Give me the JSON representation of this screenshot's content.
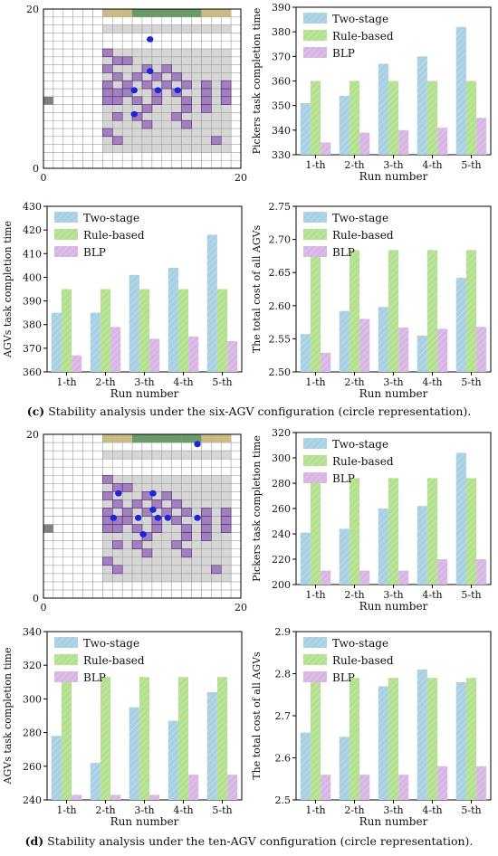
{
  "legend_labels": [
    "Two-stage",
    "Rule-based",
    "BLP"
  ],
  "colors": {
    "two_stage": "#a9cfe2",
    "rule_based": "#b3e08e",
    "blp": "#d7b6e3",
    "grid_line": "#9a9a9a",
    "shelf": "#d6d6d6",
    "workstation": "#a27fc0",
    "agv": "#1e22d8",
    "dock_tan": "#cabb86",
    "dock_green": "#6a9a6a",
    "entry": "#808080"
  },
  "captions": {
    "c": {
      "label": "(c)",
      "text": "Stability analysis under the six-AGV configuration (circle representation)."
    },
    "d": {
      "label": "(d)",
      "text": "Stability analysis under the ten-AGV configuration (circle representation)."
    }
  },
  "chart_data": [
    {
      "type": "grid-map",
      "x_ticks": [
        "0",
        "20"
      ],
      "y_ticks": [
        "0",
        "20"
      ],
      "xlim": [
        0,
        20
      ],
      "ylim": [
        0,
        20
      ],
      "highlighted_cells": [
        [
          6,
          14
        ],
        [
          7,
          13
        ],
        [
          6,
          12
        ],
        [
          7,
          11
        ],
        [
          6,
          10
        ],
        [
          6,
          9
        ],
        [
          7,
          9
        ],
        [
          8,
          10
        ],
        [
          8,
          9
        ],
        [
          6,
          8
        ],
        [
          7,
          8
        ],
        [
          9,
          8
        ],
        [
          6,
          4
        ],
        [
          7,
          6
        ],
        [
          8,
          13
        ],
        [
          9,
          11
        ],
        [
          10,
          12
        ],
        [
          10,
          10
        ],
        [
          11,
          11
        ],
        [
          12,
          12
        ],
        [
          11,
          9
        ],
        [
          12,
          10
        ],
        [
          11,
          8
        ],
        [
          13,
          11
        ],
        [
          14,
          10
        ],
        [
          13,
          9
        ],
        [
          14,
          8
        ],
        [
          16,
          10
        ],
        [
          16,
          9
        ],
        [
          16,
          8
        ],
        [
          18,
          9
        ],
        [
          18,
          8
        ],
        [
          18,
          10
        ],
        [
          9,
          6
        ],
        [
          10,
          7
        ],
        [
          10,
          5
        ],
        [
          13,
          6
        ],
        [
          14,
          7
        ],
        [
          14,
          5
        ],
        [
          16,
          7
        ],
        [
          17,
          3
        ],
        [
          7,
          3
        ]
      ],
      "agvs": [
        [
          10.8,
          16.2
        ],
        [
          10.8,
          12.2
        ],
        [
          9.2,
          9.8
        ],
        [
          11.6,
          9.8
        ],
        [
          13.6,
          9.8
        ],
        [
          9.2,
          6.8
        ]
      ]
    },
    {
      "type": "bar",
      "categories": [
        "1-th",
        "2-th",
        "3-th",
        "4-th",
        "5-th"
      ],
      "series": [
        {
          "name": "Two-stage",
          "values": [
            351,
            354,
            367,
            370,
            382
          ]
        },
        {
          "name": "Rule-based",
          "values": [
            360,
            360,
            360,
            360,
            360
          ]
        },
        {
          "name": "BLP",
          "values": [
            335,
            339,
            340,
            341,
            345
          ]
        }
      ],
      "ylim": [
        330,
        390
      ],
      "yticks": [
        330,
        340,
        350,
        360,
        370,
        380,
        390
      ],
      "xlabel": "Run number",
      "ylabel": "Pickers task completion time",
      "legend": "top-left"
    },
    {
      "type": "bar",
      "categories": [
        "1-th",
        "2-th",
        "3-th",
        "4-th",
        "5-th"
      ],
      "series": [
        {
          "name": "Two-stage",
          "values": [
            385,
            385,
            401,
            404,
            418
          ]
        },
        {
          "name": "Rule-based",
          "values": [
            395,
            395,
            395,
            395,
            395
          ]
        },
        {
          "name": "BLP",
          "values": [
            367,
            379,
            374,
            375,
            373
          ]
        }
      ],
      "ylim": [
        360,
        430
      ],
      "yticks": [
        360,
        370,
        380,
        390,
        400,
        410,
        420,
        430
      ],
      "xlabel": "Run number",
      "ylabel": "AGVs task completion time",
      "legend": "top-left"
    },
    {
      "type": "bar",
      "categories": [
        "1-th",
        "2-th",
        "3-th",
        "4-th",
        "5-th"
      ],
      "series": [
        {
          "name": "Two-stage",
          "values": [
            2.557,
            2.592,
            2.598,
            2.555,
            2.642
          ]
        },
        {
          "name": "Rule-based",
          "values": [
            2.684,
            2.684,
            2.684,
            2.684,
            2.684
          ]
        },
        {
          "name": "BLP",
          "values": [
            2.529,
            2.58,
            2.567,
            2.565,
            2.568
          ]
        }
      ],
      "ylim": [
        2.5,
        2.75
      ],
      "yticks": [
        2.5,
        2.55,
        2.6,
        2.65,
        2.7,
        2.75
      ],
      "xlabel": "Run number",
      "ylabel": "The total cost of all AGVs",
      "legend": "top-left"
    },
    {
      "type": "grid-map",
      "x_ticks": [
        "0",
        "20"
      ],
      "y_ticks": [
        "0",
        "20"
      ],
      "xlim": [
        0,
        20
      ],
      "ylim": [
        0,
        20
      ],
      "highlighted_cells": [
        [
          6,
          14
        ],
        [
          7,
          13
        ],
        [
          6,
          12
        ],
        [
          7,
          11
        ],
        [
          6,
          10
        ],
        [
          6,
          9
        ],
        [
          7,
          9
        ],
        [
          8,
          10
        ],
        [
          8,
          9
        ],
        [
          6,
          8
        ],
        [
          7,
          8
        ],
        [
          9,
          8
        ],
        [
          6,
          4
        ],
        [
          7,
          6
        ],
        [
          8,
          13
        ],
        [
          9,
          11
        ],
        [
          10,
          12
        ],
        [
          10,
          10
        ],
        [
          11,
          11
        ],
        [
          12,
          12
        ],
        [
          11,
          9
        ],
        [
          12,
          10
        ],
        [
          11,
          8
        ],
        [
          13,
          11
        ],
        [
          14,
          10
        ],
        [
          13,
          9
        ],
        [
          14,
          8
        ],
        [
          16,
          10
        ],
        [
          16,
          9
        ],
        [
          16,
          8
        ],
        [
          18,
          9
        ],
        [
          18,
          8
        ],
        [
          18,
          10
        ],
        [
          9,
          6
        ],
        [
          10,
          7
        ],
        [
          10,
          5
        ],
        [
          13,
          6
        ],
        [
          14,
          7
        ],
        [
          14,
          5
        ],
        [
          16,
          7
        ],
        [
          17,
          3
        ],
        [
          7,
          3
        ]
      ],
      "agvs": [
        [
          15.6,
          18.8
        ],
        [
          7.6,
          12.8
        ],
        [
          11.1,
          12.8
        ],
        [
          11.1,
          10.8
        ],
        [
          7.1,
          9.8
        ],
        [
          9.6,
          9.8
        ],
        [
          11.6,
          9.8
        ],
        [
          12.6,
          9.8
        ],
        [
          15.6,
          9.8
        ],
        [
          10.1,
          7.8
        ]
      ]
    },
    {
      "type": "bar",
      "categories": [
        "1-th",
        "2-th",
        "3-th",
        "4-th",
        "5-th"
      ],
      "series": [
        {
          "name": "Two-stage",
          "values": [
            241,
            244,
            260,
            262,
            304
          ]
        },
        {
          "name": "Rule-based",
          "values": [
            284,
            284,
            284,
            284,
            284
          ]
        },
        {
          "name": "BLP",
          "values": [
            211,
            211,
            211,
            220,
            220
          ]
        }
      ],
      "ylim": [
        200,
        320
      ],
      "yticks": [
        200,
        220,
        240,
        260,
        280,
        300,
        320
      ],
      "xlabel": "Run number",
      "ylabel": "Pickers task completion time",
      "legend": "top-left"
    },
    {
      "type": "bar",
      "categories": [
        "1-th",
        "2-th",
        "3-th",
        "4-th",
        "5-th"
      ],
      "series": [
        {
          "name": "Two-stage",
          "values": [
            278,
            262,
            295,
            287,
            304
          ]
        },
        {
          "name": "Rule-based",
          "values": [
            313,
            313,
            313,
            313,
            313
          ]
        },
        {
          "name": "BLP",
          "values": [
            243,
            243,
            243,
            255,
            255
          ]
        }
      ],
      "ylim": [
        240,
        340
      ],
      "yticks": [
        240,
        260,
        280,
        300,
        320,
        340
      ],
      "xlabel": "Run number",
      "ylabel": "AGVs task completion time",
      "legend": "top-left"
    },
    {
      "type": "bar",
      "categories": [
        "1-th",
        "2-th",
        "3-th",
        "4-th",
        "5-th"
      ],
      "series": [
        {
          "name": "Two-stage",
          "values": [
            2.66,
            2.65,
            2.77,
            2.81,
            2.78
          ]
        },
        {
          "name": "Rule-based",
          "values": [
            2.79,
            2.79,
            2.79,
            2.79,
            2.79
          ]
        },
        {
          "name": "BLP",
          "values": [
            2.56,
            2.56,
            2.56,
            2.58,
            2.58
          ]
        }
      ],
      "ylim": [
        2.5,
        2.9
      ],
      "yticks": [
        2.5,
        2.6,
        2.7,
        2.8,
        2.9
      ],
      "xlabel": "Run number",
      "ylabel": "The total cost of all AGVs",
      "legend": "top-left"
    }
  ]
}
